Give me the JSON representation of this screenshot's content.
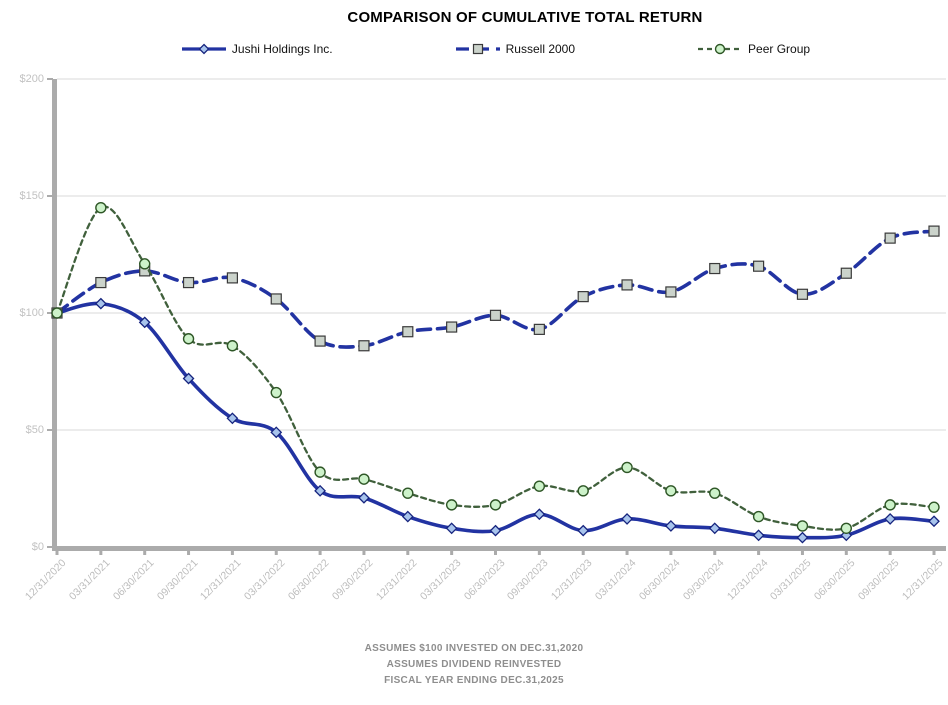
{
  "chart": {
    "title": "COMPARISON OF CUMULATIVE TOTAL RETURN"
  },
  "footer": {
    "line1": "ASSUMES $100 INVESTED ON DEC.31,2020",
    "line2": "ASSUMES DIVIDEND REINVESTED",
    "line3": "FISCAL YEAR ENDING DEC.31,2025"
  },
  "colors": {
    "grid": "#d9d9d9",
    "axis": "#ababab",
    "y_tick_label": "#c2c2c2",
    "x_tick_label": "#bdbdbd",
    "footer_text": "#8e8e8e",
    "navy_line": "#2233a2",
    "green_line": "#40603c"
  },
  "chart_data": {
    "type": "line",
    "title": "COMPARISON OF CUMULATIVE TOTAL RETURN",
    "xlabel": "",
    "ylabel": "",
    "ylim": [
      0,
      200
    ],
    "y_ticks": [
      {
        "label": "$200",
        "value": 200
      },
      {
        "label": "$150",
        "value": 150
      },
      {
        "label": "$100",
        "value": 100
      },
      {
        "label": "$50",
        "value": 50
      },
      {
        "label": "$0",
        "value": 0
      }
    ],
    "grid": "horizontal",
    "legend_position": "top",
    "categories": [
      "12/31/2020",
      "03/31/2021",
      "06/30/2021",
      "09/30/2021",
      "12/31/2021",
      "03/31/2022",
      "06/30/2022",
      "09/30/2022",
      "12/31/2022",
      "03/31/2023",
      "06/30/2023",
      "09/30/2023",
      "12/31/2023",
      "03/31/2024",
      "06/30/2024",
      "09/30/2024",
      "12/31/2024",
      "03/31/2025",
      "06/30/2025",
      "09/30/2025",
      "12/31/2025"
    ],
    "series": [
      {
        "name": "Jushi Holdings Inc.",
        "marker": "diamond",
        "line_style": "solid",
        "dash": "",
        "width": 3.6,
        "color": "#2233a2",
        "marker_fill": "#a8c4ec",
        "marker_stroke": "#16247e",
        "values": [
          100,
          104,
          96,
          72,
          55,
          49,
          24,
          21,
          13,
          8,
          7,
          14,
          7,
          12,
          9,
          8,
          5,
          4,
          5,
          12,
          11
        ]
      },
      {
        "name": "Russell 2000",
        "marker": "square",
        "line_style": "long-dash",
        "dash": "13 7",
        "width": 3.6,
        "color": "#2233a2",
        "marker_fill": "#cbd3cb",
        "marker_stroke": "#3a3a3a",
        "values": [
          100,
          113,
          118,
          113,
          115,
          106,
          88,
          86,
          92,
          94,
          99,
          93,
          107,
          112,
          109,
          119,
          120,
          108,
          117,
          132,
          135
        ]
      },
      {
        "name": "Peer Group",
        "marker": "circle",
        "line_style": "short-dash",
        "dash": "5 4",
        "width": 2.3,
        "color": "#40603c",
        "marker_fill": "#cdf2ca",
        "marker_stroke": "#2e5626",
        "values": [
          100,
          145,
          121,
          89,
          86,
          66,
          32,
          29,
          23,
          18,
          18,
          26,
          24,
          34,
          24,
          23,
          13,
          9,
          8,
          18,
          17
        ]
      }
    ]
  }
}
